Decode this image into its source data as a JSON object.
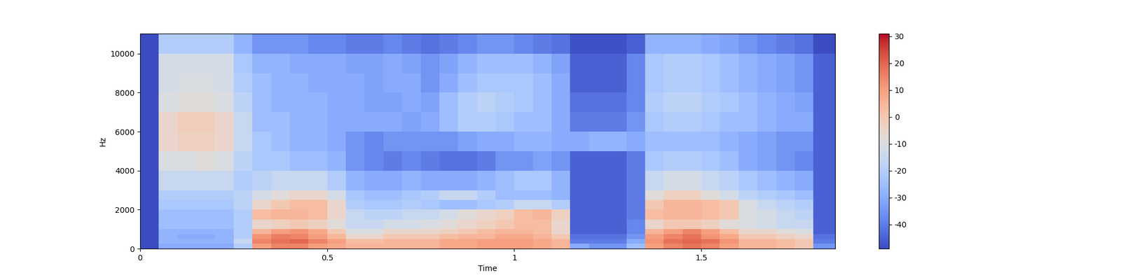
{
  "chart_data": {
    "type": "heatmap",
    "x_label": "Time",
    "y_label": "Hz",
    "xlim": [
      0,
      1.858
    ],
    "ylim": [
      0,
      11025
    ],
    "xticks": [
      0,
      0.5,
      1,
      1.5
    ],
    "yticks": [
      0,
      2000,
      4000,
      6000,
      8000,
      10000
    ],
    "time_edges": [
      0,
      0.05,
      0.1,
      0.15,
      0.2,
      0.25,
      0.3,
      0.35,
      0.4,
      0.45,
      0.5,
      0.55,
      0.6,
      0.65,
      0.7,
      0.75,
      0.8,
      0.85,
      0.9,
      0.95,
      1.0,
      1.05,
      1.1,
      1.15,
      1.2,
      1.25,
      1.3,
      1.35,
      1.4,
      1.45,
      1.5,
      1.55,
      1.6,
      1.65,
      1.7,
      1.75,
      1.8,
      1.858
    ],
    "freq_edges": [
      0,
      250,
      500,
      750,
      1000,
      1500,
      2000,
      2500,
      3000,
      4000,
      5000,
      6000,
      7000,
      8000,
      9000,
      10000,
      11025
    ],
    "cells": [
      [
        -49,
        -30,
        -30,
        -30,
        -30,
        -20,
        10,
        15,
        15,
        10,
        8,
        5,
        5,
        5,
        5,
        5,
        8,
        8,
        10,
        10,
        10,
        8,
        5,
        -30,
        -35,
        -35,
        -25,
        10,
        15,
        18,
        15,
        10,
        5,
        5,
        3,
        0,
        -35
      ],
      [
        -49,
        -28,
        -28,
        -28,
        -28,
        -15,
        15,
        18,
        20,
        15,
        10,
        3,
        3,
        5,
        5,
        5,
        8,
        8,
        10,
        10,
        10,
        8,
        5,
        -40,
        -40,
        -40,
        -30,
        12,
        18,
        20,
        18,
        12,
        5,
        5,
        3,
        0,
        -40
      ],
      [
        -49,
        -28,
        -30,
        -30,
        -28,
        -20,
        12,
        16,
        15,
        10,
        5,
        -5,
        -5,
        0,
        0,
        0,
        3,
        5,
        5,
        8,
        8,
        5,
        0,
        -42,
        -42,
        -42,
        -35,
        10,
        15,
        18,
        12,
        8,
        0,
        0,
        -3,
        -5,
        -42
      ],
      [
        -49,
        -28,
        -28,
        -28,
        -28,
        -20,
        5,
        10,
        12,
        8,
        0,
        -10,
        -10,
        -5,
        -5,
        -5,
        -3,
        0,
        3,
        5,
        5,
        3,
        -5,
        -45,
        -45,
        -45,
        -38,
        5,
        10,
        15,
        10,
        3,
        -5,
        -5,
        -8,
        -10,
        -45
      ],
      [
        -49,
        -25,
        -25,
        -25,
        -25,
        -20,
        -5,
        -3,
        0,
        -3,
        -8,
        -15,
        -15,
        -12,
        -12,
        -10,
        -8,
        -5,
        -3,
        0,
        3,
        3,
        -5,
        -45,
        -45,
        -45,
        -38,
        -5,
        0,
        0,
        -3,
        -8,
        -10,
        -12,
        -15,
        -15,
        -45
      ],
      [
        -49,
        -25,
        -25,
        -25,
        -25,
        -20,
        3,
        5,
        5,
        3,
        -5,
        -15,
        -18,
        -18,
        -15,
        -15,
        -12,
        -8,
        -5,
        -3,
        3,
        5,
        -3,
        -45,
        -45,
        -45,
        -40,
        3,
        5,
        5,
        3,
        0,
        -10,
        -12,
        -15,
        -18,
        -45
      ],
      [
        -49,
        -22,
        -22,
        -22,
        -22,
        -18,
        -5,
        0,
        3,
        3,
        -5,
        -20,
        -22,
        -22,
        -20,
        -22,
        -25,
        -25,
        -22,
        -20,
        -15,
        -15,
        -20,
        -45,
        -45,
        -45,
        -40,
        0,
        5,
        5,
        3,
        0,
        -10,
        -15,
        -18,
        -20,
        -45
      ],
      [
        -49,
        -20,
        -20,
        -20,
        -20,
        -18,
        -12,
        -8,
        -5,
        -5,
        -12,
        -22,
        -25,
        -25,
        -22,
        -20,
        -15,
        -15,
        -20,
        -25,
        -25,
        -25,
        -28,
        -45,
        -45,
        -45,
        -40,
        -8,
        -3,
        -3,
        -8,
        -12,
        -18,
        -20,
        -22,
        -25,
        -45
      ],
      [
        -49,
        -15,
        -15,
        -15,
        -15,
        -20,
        -18,
        -15,
        -15,
        -15,
        -20,
        -28,
        -30,
        -30,
        -28,
        -30,
        -30,
        -30,
        -28,
        -25,
        -22,
        -22,
        -28,
        -45,
        -45,
        -45,
        -40,
        -15,
        -12,
        -12,
        -15,
        -18,
        -22,
        -25,
        -28,
        -30,
        -45
      ],
      [
        -49,
        -10,
        -10,
        -8,
        -10,
        -18,
        -22,
        -22,
        -25,
        -25,
        -28,
        -35,
        -38,
        -40,
        -38,
        -40,
        -42,
        -42,
        -40,
        -35,
        -35,
        -32,
        -35,
        -45,
        -45,
        -45,
        -40,
        -22,
        -20,
        -20,
        -22,
        -25,
        -30,
        -32,
        -35,
        -38,
        -45
      ],
      [
        -49,
        -5,
        -3,
        -3,
        -5,
        -15,
        -22,
        -25,
        -28,
        -28,
        -30,
        -35,
        -38,
        -35,
        -35,
        -35,
        -35,
        -32,
        -30,
        -30,
        -28,
        -28,
        -30,
        -30,
        -28,
        -28,
        -30,
        -25,
        -25,
        -25,
        -25,
        -28,
        -30,
        -32,
        -35,
        -35,
        -45
      ],
      [
        -49,
        -5,
        -2,
        -2,
        -5,
        -15,
        -25,
        -25,
        -28,
        -28,
        -30,
        -30,
        -30,
        -30,
        -32,
        -30,
        -25,
        -20,
        -20,
        -22,
        -25,
        -25,
        -30,
        -40,
        -40,
        -40,
        -35,
        -22,
        -20,
        -20,
        -22,
        -25,
        -25,
        -28,
        -30,
        -30,
        -45
      ],
      [
        -49,
        -10,
        -8,
        -8,
        -10,
        -18,
        -25,
        -28,
        -28,
        -28,
        -30,
        -30,
        -32,
        -32,
        -30,
        -32,
        -25,
        -20,
        -18,
        -20,
        -22,
        -25,
        -30,
        -42,
        -42,
        -42,
        -38,
        -20,
        -18,
        -18,
        -20,
        -22,
        -25,
        -28,
        -30,
        -32,
        -45
      ],
      [
        -49,
        -12,
        -10,
        -10,
        -12,
        -20,
        -25,
        -28,
        -28,
        -30,
        -30,
        -30,
        -32,
        -30,
        -30,
        -35,
        -30,
        -25,
        -22,
        -22,
        -22,
        -25,
        -30,
        -45,
        -45,
        -45,
        -38,
        -22,
        -20,
        -20,
        -22,
        -25,
        -28,
        -30,
        -32,
        -35,
        -45
      ],
      [
        -49,
        -12,
        -12,
        -12,
        -12,
        -22,
        -28,
        -28,
        -30,
        -30,
        -30,
        -32,
        -32,
        -30,
        -32,
        -35,
        -32,
        -28,
        -25,
        -25,
        -25,
        -28,
        -32,
        -45,
        -45,
        -45,
        -38,
        -22,
        -20,
        -20,
        -22,
        -25,
        -28,
        -30,
        -32,
        -35,
        -45
      ],
      [
        -49,
        -20,
        -20,
        -20,
        -20,
        -28,
        -35,
        -35,
        -35,
        -38,
        -38,
        -40,
        -40,
        -38,
        -40,
        -42,
        -40,
        -38,
        -35,
        -35,
        -38,
        -40,
        -42,
        -48,
        -48,
        -48,
        -45,
        -28,
        -28,
        -28,
        -30,
        -32,
        -35,
        -38,
        -40,
        -42,
        -49
      ]
    ],
    "colorbar": {
      "range": [
        -49,
        31
      ],
      "ticks": [
        -40,
        -30,
        -20,
        -10,
        0,
        10,
        20,
        30
      ]
    }
  }
}
